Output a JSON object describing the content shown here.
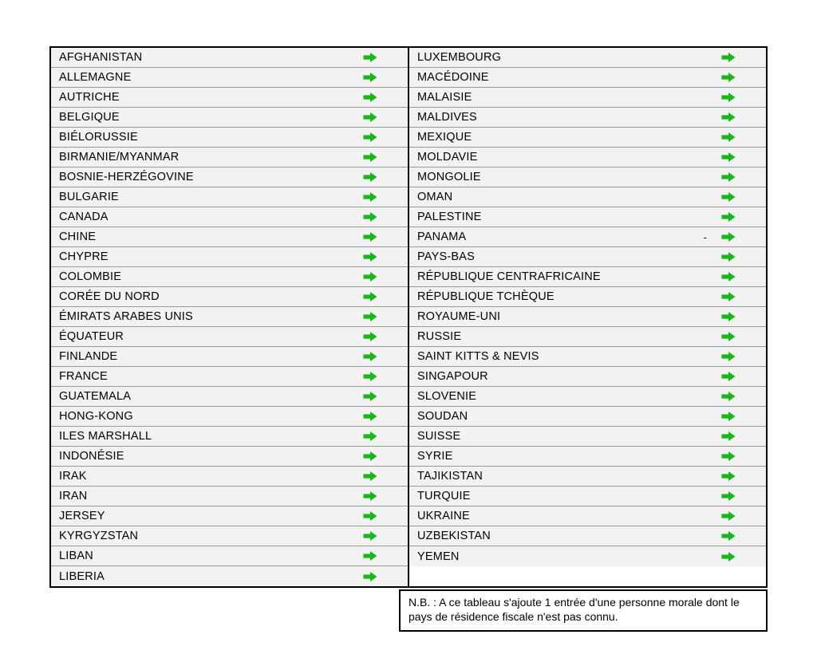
{
  "colors": {
    "arrow": "#1ab51a",
    "row_bg": "#f2f2f2",
    "border": "#000000",
    "row_border": "#999999"
  },
  "left_column": [
    {
      "label": "AFGHANISTAN"
    },
    {
      "label": "ALLEMAGNE"
    },
    {
      "label": "AUTRICHE"
    },
    {
      "label": "BELGIQUE"
    },
    {
      "label": "BIÉLORUSSIE"
    },
    {
      "label": "BIRMANIE/MYANMAR"
    },
    {
      "label": "BOSNIE-HERZÉGOVINE"
    },
    {
      "label": "BULGARIE"
    },
    {
      "label": "CANADA"
    },
    {
      "label": "CHINE"
    },
    {
      "label": "CHYPRE"
    },
    {
      "label": "COLOMBIE"
    },
    {
      "label": "CORÉE DU NORD"
    },
    {
      "label": "ÉMIRATS ARABES UNIS"
    },
    {
      "label": "ÉQUATEUR"
    },
    {
      "label": "FINLANDE"
    },
    {
      "label": "FRANCE"
    },
    {
      "label": "GUATEMALA"
    },
    {
      "label": "HONG-KONG"
    },
    {
      "label": "ILES MARSHALL"
    },
    {
      "label": "INDONÉSIE"
    },
    {
      "label": "IRAK"
    },
    {
      "label": "IRAN"
    },
    {
      "label": "JERSEY"
    },
    {
      "label": "KYRGYZSTAN"
    },
    {
      "label": "LIBAN"
    },
    {
      "label": "LIBERIA"
    }
  ],
  "right_column": [
    {
      "label": "LUXEMBOURG"
    },
    {
      "label": "MACÉDOINE"
    },
    {
      "label": "MALAISIE"
    },
    {
      "label": "MALDIVES"
    },
    {
      "label": "MEXIQUE"
    },
    {
      "label": "MOLDAVIE"
    },
    {
      "label": "MONGOLIE"
    },
    {
      "label": "OMAN"
    },
    {
      "label": "PALESTINE"
    },
    {
      "label": "PANAMA",
      "note": "-"
    },
    {
      "label": "PAYS-BAS"
    },
    {
      "label": "RÉPUBLIQUE CENTRAFRICAINE"
    },
    {
      "label": "RÉPUBLIQUE TCHÈQUE"
    },
    {
      "label": "ROYAUME-UNI"
    },
    {
      "label": "RUSSIE"
    },
    {
      "label": "SAINT KITTS & NEVIS"
    },
    {
      "label": "SINGAPOUR"
    },
    {
      "label": "SLOVENIE"
    },
    {
      "label": "SOUDAN"
    },
    {
      "label": "SUISSE"
    },
    {
      "label": "SYRIE"
    },
    {
      "label": "TAJIKISTAN"
    },
    {
      "label": "TURQUIE"
    },
    {
      "label": "UKRAINE"
    },
    {
      "label": "UZBEKISTAN"
    },
    {
      "label": "YEMEN"
    }
  ],
  "footnote": "N.B. : A ce tableau s'ajoute 1 entrée d'une personne morale dont le pays de résidence fiscale n'est pas connu."
}
